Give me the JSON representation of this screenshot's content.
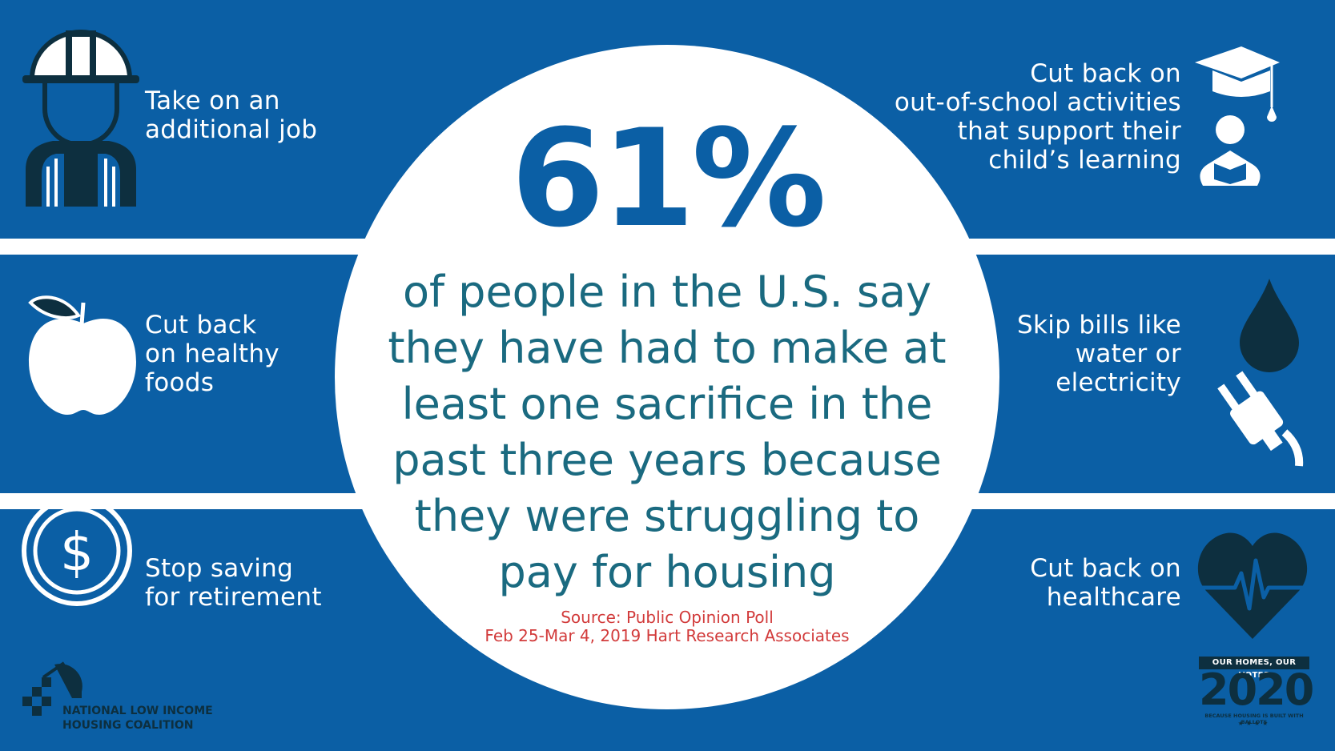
{
  "center": {
    "percent": "61%",
    "statement": "of people in the U.S. say\nthey have had to make at\nleast one sacrifice in the\npast three years because\nthey were struggling to\npay for housing",
    "source": "Source: Public Opinion Poll\nFeb 25-Mar 4, 2019 Hart Research Associates"
  },
  "items": {
    "additional_job": "Take on an\nadditional job",
    "healthy_foods": "Cut back\non healthy\nfoods",
    "retirement": "Stop saving\nfor retirement",
    "school_activities": "Cut back on\nout-of-school activities\nthat support their\nchild’s learning",
    "bills": "Skip bills like\nwater or\nelectricity",
    "healthcare": "Cut back on\nhealthcare"
  },
  "icons": {
    "additional_job": "construction-worker-icon",
    "healthy_foods": "apple-icon",
    "retirement": "dollar-coin-icon",
    "school_activities": "graduation-reader-icon",
    "bills": "water-drop-plug-icon",
    "healthcare": "heart-pulse-icon"
  },
  "logos": {
    "org_name": "NATIONAL LOW INCOME\nHOUSING COALITION",
    "campaign_title": "OUR HOMES, OUR VOTES",
    "campaign_year": "2020",
    "campaign_tagline": "BECAUSE HOUSING IS BUILT WITH BALLOTS",
    "campaign_stars": "★★★★"
  },
  "colors": {
    "band_blue": "#0b5fa5",
    "icon_dark": "#0d2f3f",
    "stat_blue": "#0b5fa5",
    "statement_teal": "#1a6a80",
    "source_red": "#d23b3b"
  }
}
